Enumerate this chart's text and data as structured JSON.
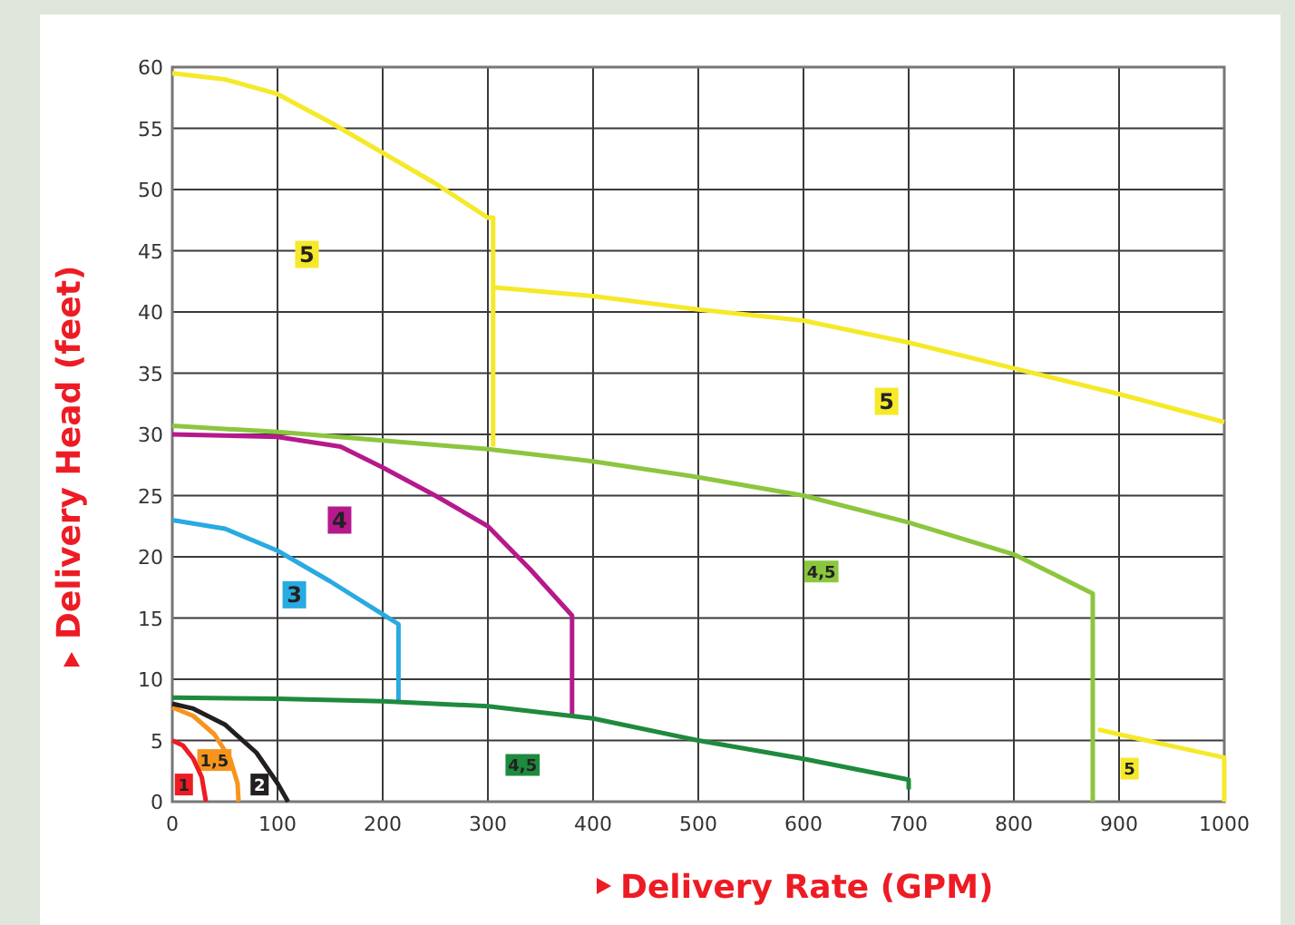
{
  "chart_data": {
    "type": "line",
    "xlabel": "Delivery Rate (GPM)",
    "ylabel": "Delivery Head (feet)",
    "xlim": [
      0,
      1000
    ],
    "xticks": [
      0,
      100,
      200,
      300,
      400,
      500,
      600,
      700,
      800,
      900,
      1000
    ],
    "ylim": [
      0,
      60
    ],
    "yticks": [
      0,
      5,
      10,
      15,
      20,
      25,
      30,
      35,
      40,
      45,
      50,
      55,
      60
    ],
    "grid": true,
    "marker": "none",
    "line_style": "solid",
    "series": [
      {
        "name": "1",
        "color": "#ed1c24",
        "x": [
          0,
          10,
          20,
          28,
          32
        ],
        "values": [
          5,
          4.6,
          3.5,
          2,
          0
        ]
      },
      {
        "name": "1,5",
        "color": "#f7941d",
        "x": [
          0,
          20,
          40,
          55,
          62,
          63
        ],
        "values": [
          7.7,
          7,
          5.5,
          3.5,
          1.5,
          0
        ]
      },
      {
        "name": "2",
        "color": "#231f20",
        "x": [
          0,
          20,
          50,
          80,
          100,
          110
        ],
        "values": [
          8,
          7.6,
          6.3,
          4,
          1.5,
          0
        ]
      },
      {
        "name": "3",
        "color": "#29aae1",
        "x": [
          0,
          50,
          100,
          150,
          200,
          215,
          215
        ],
        "values": [
          23,
          22.3,
          20.5,
          18,
          15.3,
          14.5,
          8.3
        ]
      },
      {
        "name": "4",
        "color": "#b5198c",
        "x": [
          0,
          100,
          160,
          200,
          250,
          300,
          340,
          380,
          380
        ],
        "values": [
          30,
          29.8,
          29,
          27.3,
          25,
          22.5,
          19,
          15.2,
          7
        ]
      },
      {
        "name": "4,5",
        "color": "#1e8a3e",
        "x": [
          0,
          100,
          200,
          300,
          400,
          500,
          600,
          700,
          700
        ],
        "values": [
          8.5,
          8.4,
          8.2,
          7.8,
          6.8,
          5,
          3.5,
          1.8,
          1
        ]
      },
      {
        "name": "4,5",
        "color": "#8cc63f",
        "x": [
          0,
          100,
          200,
          300,
          400,
          500,
          600,
          700,
          800,
          875,
          875
        ],
        "values": [
          30.7,
          30.2,
          29.5,
          28.8,
          27.8,
          26.5,
          25,
          22.8,
          20.2,
          17,
          0
        ]
      },
      {
        "name": "5",
        "color": "#f5e92a",
        "x": [
          0,
          50,
          100,
          150,
          200,
          250,
          300,
          305,
          305,
          null,
          307,
          400,
          500,
          600,
          700,
          800,
          900,
          1000,
          null,
          880,
          900,
          1000,
          1000
        ],
        "values": [
          59.5,
          59,
          57.8,
          55.5,
          53,
          50.5,
          47.7,
          47.7,
          29,
          null,
          42,
          41.3,
          40.2,
          39.3,
          37.5,
          35.4,
          33.3,
          31,
          null,
          5.9,
          5.5,
          3.6,
          0
        ]
      }
    ],
    "annotations": [
      "5",
      "5"
    ]
  }
}
